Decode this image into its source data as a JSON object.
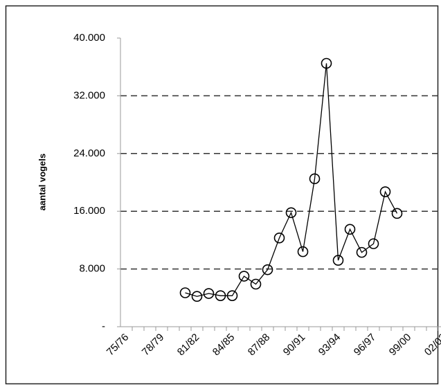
{
  "chart_data": {
    "type": "line",
    "y_label": "aantal vogels",
    "categories": [
      "75/76",
      null,
      null,
      "78/79",
      null,
      null,
      "81/82",
      null,
      null,
      "84/85",
      null,
      null,
      "87/88",
      null,
      null,
      "90/91",
      null,
      null,
      "93/94",
      null,
      null,
      "96/97",
      null,
      null,
      "99/00",
      null,
      null,
      "02/03"
    ],
    "series": [
      {
        "color": "#000000",
        "values": [
          null,
          null,
          null,
          null,
          null,
          4700,
          4200,
          4600,
          4300,
          4300,
          7000,
          5900,
          7900,
          12300,
          15800,
          10400,
          20500,
          36500,
          9200,
          13500,
          10300,
          11500,
          18700,
          15700,
          null,
          null,
          null,
          null
        ]
      }
    ],
    "ylim": [
      0,
      40000
    ],
    "yticks": [
      {
        "value": 0,
        "label": "-"
      },
      {
        "value": 8000,
        "label": "8.000"
      },
      {
        "value": 16000,
        "label": "16.000"
      },
      {
        "value": 24000,
        "label": "24.000"
      },
      {
        "value": 32000,
        "label": "32.000"
      },
      {
        "value": 40000,
        "label": "40.000"
      }
    ],
    "grid": true
  }
}
